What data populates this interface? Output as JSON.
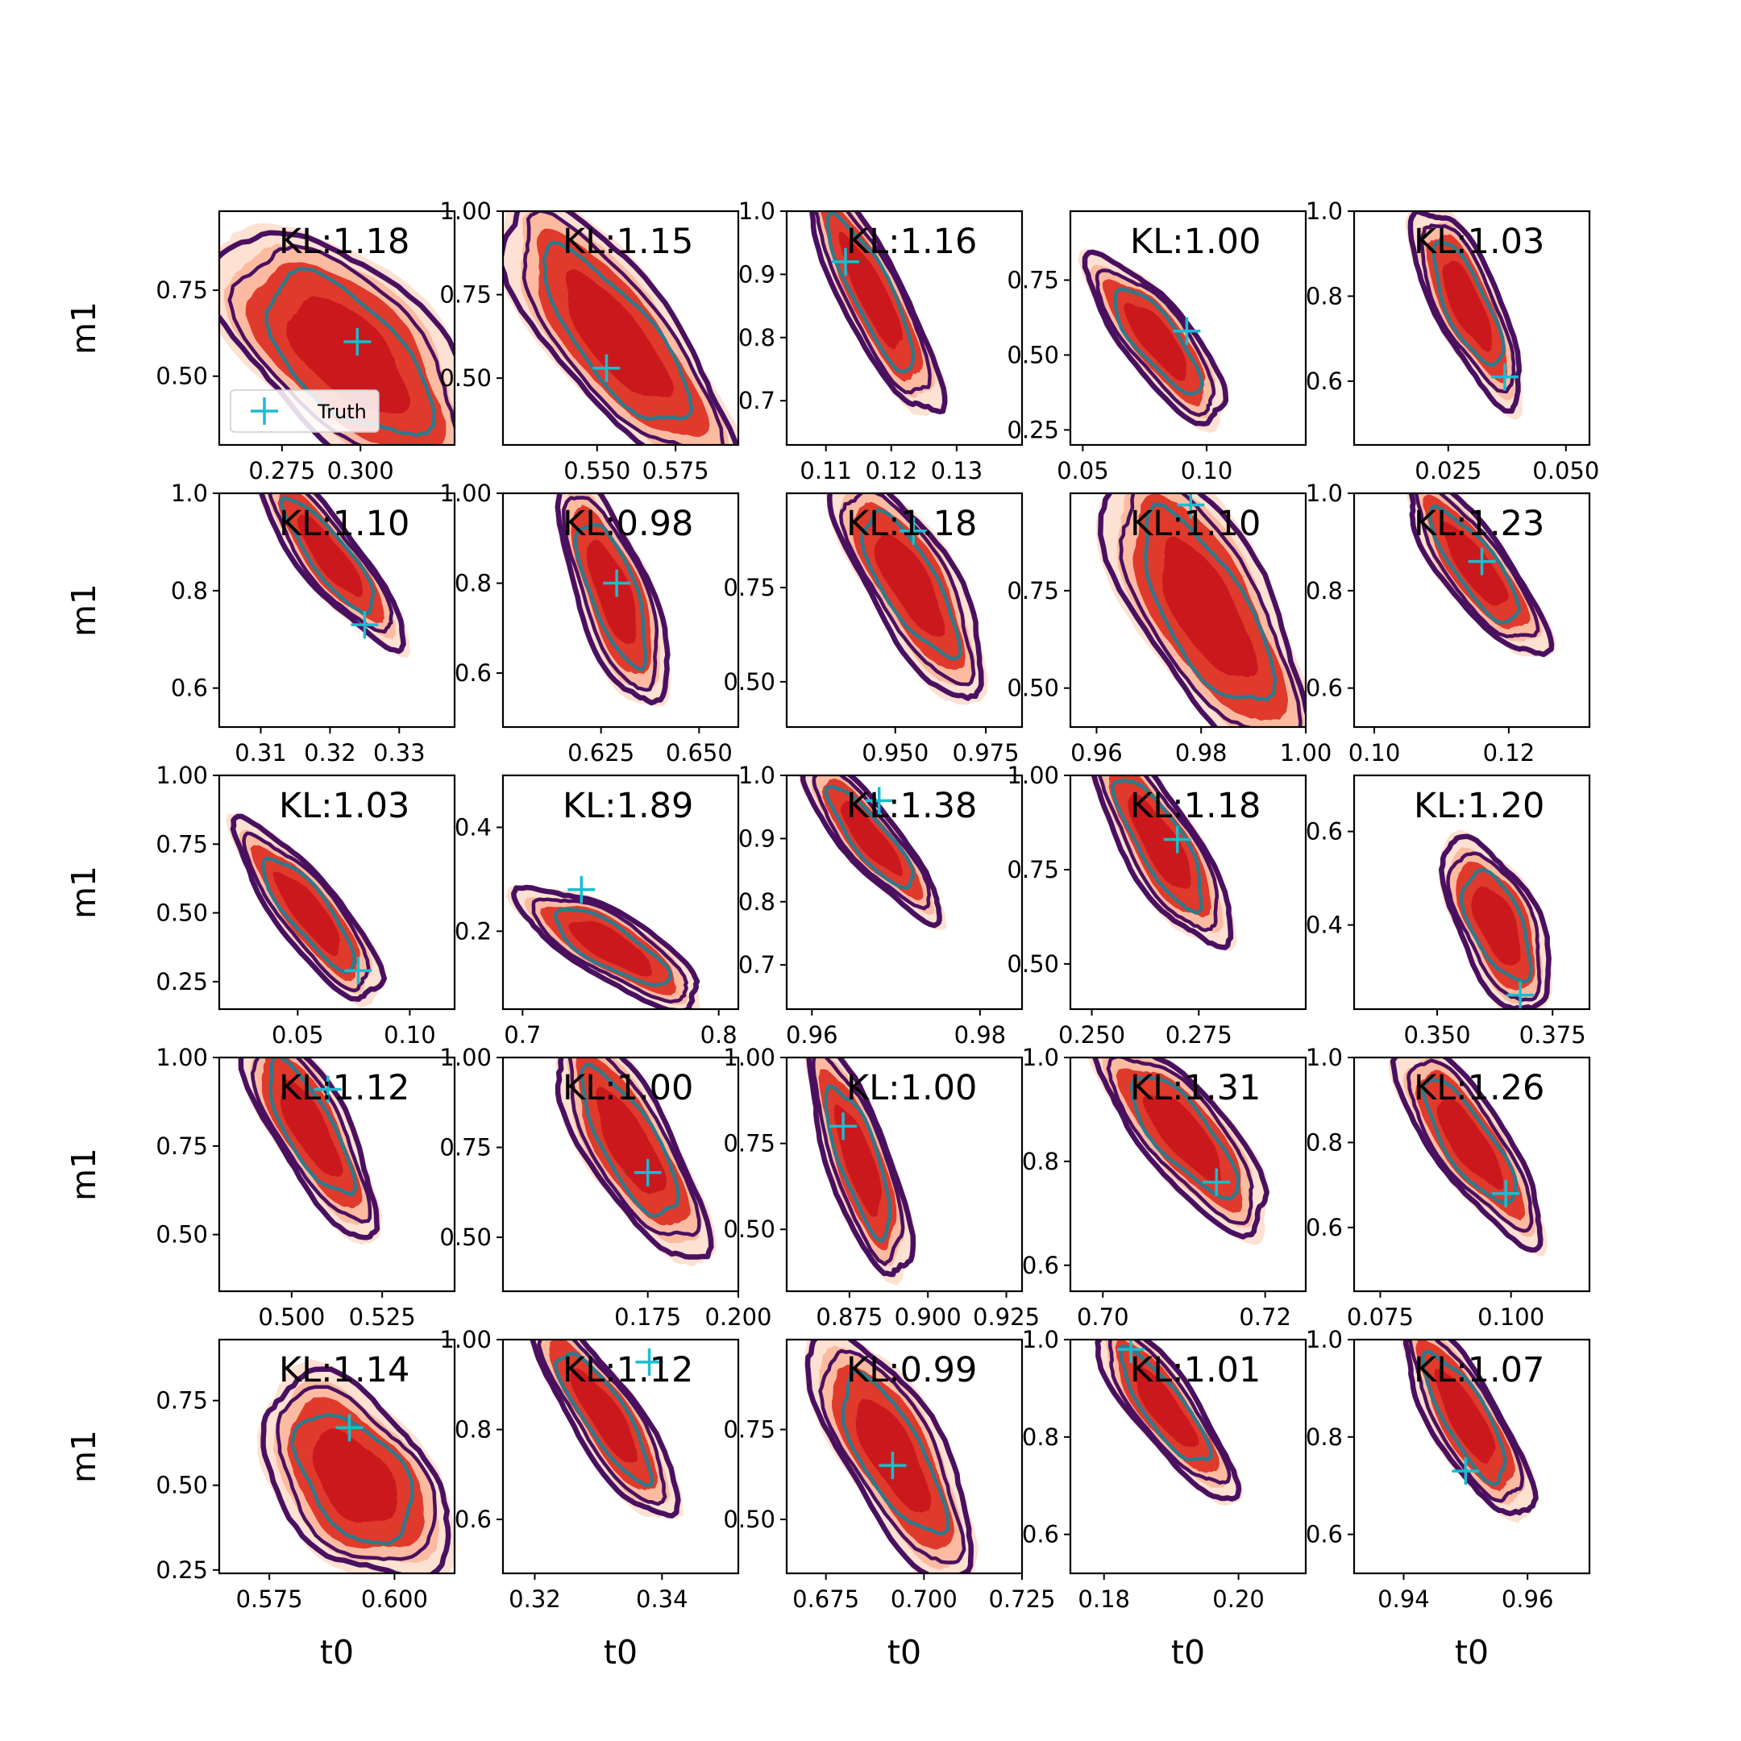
{
  "chart_data": {
    "type": "contour-grid",
    "rows": 5,
    "cols": 5,
    "xlabel": "t0",
    "ylabel": "m1",
    "legend": {
      "label": "Truth",
      "placement": "lower-left of first panel"
    },
    "colors": {
      "fill_outer": "#fde1d3",
      "fill_mid": "#fcbba1",
      "fill_inner": "#e03a2c",
      "fill_core": "#cb181d",
      "contour_outer": "#4a1060",
      "contour_inner": "#2e7a8c",
      "truth": "#17becf"
    },
    "panels": [
      {
        "kl": "KL:1.18",
        "xticks": [
          0.275,
          0.3
        ],
        "xticklabels": [
          "0.275",
          "0.300"
        ],
        "xlim": [
          0.255,
          0.33
        ],
        "yticks": [
          0.75,
          0.5
        ],
        "yticklabels": [
          "0.75",
          "0.50"
        ],
        "ylim": [
          0.3,
          0.98
        ],
        "cx": 0.296,
        "cy": 0.56,
        "sx": 0.018,
        "sy": 0.16,
        "rho": -0.6,
        "truth": [
          0.299,
          0.6
        ],
        "legend": true
      },
      {
        "kl": "KL:1.15",
        "xticks": [
          0.55,
          0.575
        ],
        "xticklabels": [
          "0.550",
          "0.575"
        ],
        "xlim": [
          0.52,
          0.595
        ],
        "yticks": [
          1.0,
          0.75,
          0.5
        ],
        "yticklabels": [
          "1.00",
          "0.75",
          "0.50"
        ],
        "ylim": [
          0.3,
          1.0
        ],
        "cx": 0.556,
        "cy": 0.62,
        "sx": 0.016,
        "sy": 0.18,
        "rho": -0.78,
        "truth": [
          0.553,
          0.53
        ]
      },
      {
        "kl": "KL:1.16",
        "xticks": [
          0.11,
          0.12,
          0.13
        ],
        "xticklabels": [
          "0.11",
          "0.12",
          "0.13"
        ],
        "xlim": [
          0.104,
          0.14
        ],
        "yticks": [
          1.0,
          0.9,
          0.8,
          0.7
        ],
        "yticklabels": [
          "1.0",
          "0.9",
          "0.8",
          "0.7"
        ],
        "ylim": [
          0.63,
          1.0
        ],
        "cx": 0.117,
        "cy": 0.87,
        "sx": 0.0045,
        "sy": 0.085,
        "rho": -0.86,
        "truth": [
          0.113,
          0.92
        ]
      },
      {
        "kl": "KL:1.00",
        "xticks": [
          0.05,
          0.1
        ],
        "xticklabels": [
          "0.05",
          "0.10"
        ],
        "xlim": [
          0.045,
          0.14
        ],
        "yticks": [
          0.75,
          0.5,
          0.25
        ],
        "yticklabels": [
          "0.75",
          "0.50",
          "0.25"
        ],
        "ylim": [
          0.2,
          0.98
        ],
        "cx": 0.08,
        "cy": 0.55,
        "sx": 0.012,
        "sy": 0.12,
        "rho": -0.8,
        "truth": [
          0.092,
          0.58
        ]
      },
      {
        "kl": "KL:1.03",
        "xticks": [
          0.025,
          0.05
        ],
        "xticklabels": [
          "0.025",
          "0.050"
        ],
        "xlim": [
          0.005,
          0.055
        ],
        "yticks": [
          1.0,
          0.8,
          0.6
        ],
        "yticklabels": [
          "1.0",
          "0.8",
          "0.6"
        ],
        "ylim": [
          0.45,
          1.0
        ],
        "cx": 0.029,
        "cy": 0.78,
        "sx": 0.005,
        "sy": 0.1,
        "rho": -0.75,
        "truth": [
          0.037,
          0.61
        ]
      },
      {
        "kl": "KL:1.10",
        "xticks": [
          0.31,
          0.32,
          0.33
        ],
        "xticklabels": [
          "0.31",
          "0.32",
          "0.33"
        ],
        "xlim": [
          0.304,
          0.338
        ],
        "yticks": [
          1.0,
          0.8,
          0.6
        ],
        "yticklabels": [
          "1.0",
          "0.8",
          "0.6"
        ],
        "ylim": [
          0.52,
          1.0
        ],
        "cx": 0.32,
        "cy": 0.87,
        "sx": 0.0045,
        "sy": 0.08,
        "rho": -0.86,
        "truth": [
          0.325,
          0.73
        ]
      },
      {
        "kl": "KL:0.98",
        "xticks": [
          0.625,
          0.65
        ],
        "xticklabels": [
          "0.625",
          "0.650"
        ],
        "xlim": [
          0.6,
          0.66
        ],
        "yticks": [
          1.0,
          0.8,
          0.6
        ],
        "yticklabels": [
          "1.00",
          "0.8",
          "0.6"
        ],
        "ylim": [
          0.48,
          1.0
        ],
        "cx": 0.628,
        "cy": 0.78,
        "sx": 0.006,
        "sy": 0.11,
        "rho": -0.7,
        "truth": [
          0.629,
          0.8
        ]
      },
      {
        "kl": "KL:1.18",
        "xticks": [
          0.95,
          0.975
        ],
        "xticklabels": [
          "0.950",
          "0.975"
        ],
        "xlim": [
          0.92,
          0.985
        ],
        "yticks": [
          0.75,
          0.5
        ],
        "yticklabels": [
          "0.75",
          "0.50"
        ],
        "ylim": [
          0.38,
          1.0
        ],
        "cx": 0.954,
        "cy": 0.76,
        "sx": 0.009,
        "sy": 0.13,
        "rho": -0.76,
        "truth": [
          0.955,
          0.9
        ]
      },
      {
        "kl": "KL:1.10",
        "xticks": [
          0.96,
          0.98,
          1.0
        ],
        "xticklabels": [
          "0.96",
          "0.98",
          "1.00"
        ],
        "xlim": [
          0.955,
          1.0
        ],
        "yticks": [
          0.75,
          0.5
        ],
        "yticklabels": [
          "0.75",
          "0.50"
        ],
        "ylim": [
          0.4,
          1.0
        ],
        "cx": 0.981,
        "cy": 0.7,
        "sx": 0.0085,
        "sy": 0.17,
        "rho": -0.7,
        "truth": [
          0.978,
          0.97
        ]
      },
      {
        "kl": "KL:1.23",
        "xticks": [
          0.1,
          0.12
        ],
        "xticklabels": [
          "0.10",
          "0.12"
        ],
        "xlim": [
          0.097,
          0.132
        ],
        "yticks": [
          1.0,
          0.8,
          0.6
        ],
        "yticklabels": [
          "1.0",
          "0.8",
          "0.6"
        ],
        "ylim": [
          0.52,
          1.0
        ],
        "cx": 0.115,
        "cy": 0.85,
        "sx": 0.0045,
        "sy": 0.08,
        "rho": -0.82,
        "truth": [
          0.116,
          0.86
        ]
      },
      {
        "kl": "KL:1.03",
        "xticks": [
          0.05,
          0.1
        ],
        "xticklabels": [
          "0.05",
          "0.10"
        ],
        "xlim": [
          0.015,
          0.12
        ],
        "yticks": [
          1.0,
          0.75,
          0.5,
          0.25
        ],
        "yticklabels": [
          "1.00",
          "0.75",
          "0.50",
          "0.25"
        ],
        "ylim": [
          0.15,
          1.0
        ],
        "cx": 0.055,
        "cy": 0.5,
        "sx": 0.014,
        "sy": 0.14,
        "rho": -0.84,
        "truth": [
          0.077,
          0.29
        ]
      },
      {
        "kl": "KL:1.89",
        "xticks": [
          0.7,
          0.8
        ],
        "xticklabels": [
          "0.7",
          "0.8"
        ],
        "xlim": [
          0.69,
          0.81
        ],
        "yticks": [
          0.4,
          0.2
        ],
        "yticklabels": [
          "0.4",
          "0.2"
        ],
        "ylim": [
          0.05,
          0.5
        ],
        "cx": 0.745,
        "cy": 0.17,
        "sx": 0.02,
        "sy": 0.05,
        "rho": -0.78,
        "truth": [
          0.73,
          0.28
        ]
      },
      {
        "kl": "KL:1.38",
        "xticks": [
          0.96,
          0.98
        ],
        "xticklabels": [
          "0.96",
          "0.98"
        ],
        "xlim": [
          0.957,
          0.985
        ],
        "yticks": [
          1.0,
          0.9,
          0.8,
          0.7
        ],
        "yticklabels": [
          "1.0",
          "0.9",
          "0.8",
          "0.7"
        ],
        "ylim": [
          0.63,
          1.0
        ],
        "cx": 0.967,
        "cy": 0.9,
        "sx": 0.0035,
        "sy": 0.055,
        "rho": -0.86,
        "truth": [
          0.968,
          0.96
        ]
      },
      {
        "kl": "KL:1.18",
        "xticks": [
          0.25,
          0.275
        ],
        "xticklabels": [
          "0.250",
          "0.275"
        ],
        "xlim": [
          0.245,
          0.3
        ],
        "yticks": [
          1.0,
          0.75,
          0.5
        ],
        "yticklabels": [
          "1.00",
          "0.75",
          "0.50"
        ],
        "ylim": [
          0.38,
          1.0
        ],
        "cx": 0.266,
        "cy": 0.82,
        "sx": 0.007,
        "sy": 0.12,
        "rho": -0.8,
        "truth": [
          0.27,
          0.83
        ]
      },
      {
        "kl": "KL:1.20",
        "xticks": [
          0.35,
          0.375
        ],
        "xticklabels": [
          "0.350",
          "0.375"
        ],
        "xlim": [
          0.332,
          0.383
        ],
        "yticks": [
          0.6,
          0.4
        ],
        "yticklabels": [
          "0.6",
          "0.4"
        ],
        "ylim": [
          0.22,
          0.72
        ],
        "cx": 0.363,
        "cy": 0.4,
        "sx": 0.005,
        "sy": 0.08,
        "rho": -0.58,
        "truth": [
          0.368,
          0.25
        ]
      },
      {
        "kl": "KL:1.12",
        "xticks": [
          0.5,
          0.525
        ],
        "xticklabels": [
          "0.500",
          "0.525"
        ],
        "xlim": [
          0.48,
          0.545
        ],
        "yticks": [
          1.0,
          0.75,
          0.5
        ],
        "yticklabels": [
          "1.00",
          "0.75",
          "0.50"
        ],
        "ylim": [
          0.34,
          1.0
        ],
        "cx": 0.505,
        "cy": 0.8,
        "sx": 0.008,
        "sy": 0.13,
        "rho": -0.78,
        "truth": [
          0.51,
          0.91
        ]
      },
      {
        "kl": "KL:1.00",
        "xticks": [
          0.175,
          0.2
        ],
        "xticklabels": [
          "0.175",
          "0.200"
        ],
        "xlim": [
          0.135,
          0.2
        ],
        "yticks": [
          1.0,
          0.75,
          0.5
        ],
        "yticklabels": [
          "1.00",
          "0.75",
          "0.50"
        ],
        "ylim": [
          0.35,
          1.0
        ],
        "cx": 0.17,
        "cy": 0.76,
        "sx": 0.009,
        "sy": 0.14,
        "rho": -0.76,
        "truth": [
          0.175,
          0.68
        ]
      },
      {
        "kl": "KL:1.00",
        "xticks": [
          0.875,
          0.9,
          0.925
        ],
        "xticklabels": [
          "0.875",
          "0.900",
          "0.925"
        ],
        "xlim": [
          0.855,
          0.93
        ],
        "yticks": [
          1.0,
          0.75,
          0.5
        ],
        "yticklabels": [
          "1.00",
          "0.75",
          "0.50"
        ],
        "ylim": [
          0.32,
          1.0
        ],
        "cx": 0.878,
        "cy": 0.7,
        "sx": 0.007,
        "sy": 0.15,
        "rho": -0.76,
        "truth": [
          0.873,
          0.8
        ]
      },
      {
        "kl": "KL:1.31",
        "xticks": [
          0.7,
          0.72
        ],
        "xticklabels": [
          "0.70",
          "0.72"
        ],
        "xlim": [
          0.696,
          0.725
        ],
        "yticks": [
          1.0,
          0.8,
          0.6
        ],
        "yticklabels": [
          "1.0",
          "0.8",
          "0.6"
        ],
        "ylim": [
          0.55,
          1.0
        ],
        "cx": 0.71,
        "cy": 0.85,
        "sx": 0.0045,
        "sy": 0.08,
        "rho": -0.78,
        "truth": [
          0.714,
          0.76
        ]
      },
      {
        "kl": "KL:1.26",
        "xticks": [
          0.075,
          0.1
        ],
        "xticklabels": [
          "0.075",
          "0.100"
        ],
        "xlim": [
          0.07,
          0.115
        ],
        "yticks": [
          1.0,
          0.8,
          0.6
        ],
        "yticklabels": [
          "1.0",
          "0.8",
          "0.6"
        ],
        "ylim": [
          0.45,
          1.0
        ],
        "cx": 0.092,
        "cy": 0.8,
        "sx": 0.006,
        "sy": 0.1,
        "rho": -0.8,
        "truth": [
          0.099,
          0.68
        ]
      },
      {
        "kl": "KL:1.14",
        "xticks": [
          0.575,
          0.6
        ],
        "xticklabels": [
          "0.575",
          "0.600"
        ],
        "xlim": [
          0.565,
          0.612
        ],
        "yticks": [
          0.75,
          0.5,
          0.25
        ],
        "yticklabels": [
          "0.75",
          "0.50",
          "0.25"
        ],
        "ylim": [
          0.24,
          0.93
        ],
        "cx": 0.592,
        "cy": 0.52,
        "sx": 0.008,
        "sy": 0.13,
        "rho": -0.45,
        "truth": [
          0.591,
          0.67
        ]
      },
      {
        "kl": "KL:1.12",
        "xticks": [
          0.32,
          0.34
        ],
        "xticklabels": [
          "0.32",
          "0.34"
        ],
        "xlim": [
          0.315,
          0.352
        ],
        "yticks": [
          1.0,
          0.8,
          0.6
        ],
        "yticklabels": [
          "1.00",
          "0.8",
          "0.6"
        ],
        "ylim": [
          0.48,
          1.0
        ],
        "cx": 0.331,
        "cy": 0.83,
        "sx": 0.005,
        "sy": 0.1,
        "rho": -0.85,
        "truth": [
          0.338,
          0.95
        ]
      },
      {
        "kl": "KL:0.99",
        "xticks": [
          0.675,
          0.7,
          0.725
        ],
        "xticklabels": [
          "0.675",
          "0.700",
          "0.725"
        ],
        "xlim": [
          0.665,
          0.725
        ],
        "yticks": [
          0.75,
          0.5
        ],
        "yticklabels": [
          "0.75",
          "0.50"
        ],
        "ylim": [
          0.35,
          1.0
        ],
        "cx": 0.692,
        "cy": 0.68,
        "sx": 0.009,
        "sy": 0.15,
        "rho": -0.74,
        "truth": [
          0.692,
          0.65
        ]
      },
      {
        "kl": "KL:1.01",
        "xticks": [
          0.18,
          0.2
        ],
        "xticklabels": [
          "0.18",
          "0.20"
        ],
        "xlim": [
          0.175,
          0.21
        ],
        "yticks": [
          1.0,
          0.8,
          0.6
        ],
        "yticklabels": [
          "1.0",
          "0.8",
          "0.6"
        ],
        "ylim": [
          0.52,
          1.0
        ],
        "cx": 0.189,
        "cy": 0.86,
        "sx": 0.0045,
        "sy": 0.08,
        "rho": -0.84,
        "truth": [
          0.184,
          0.98
        ]
      },
      {
        "kl": "KL:1.07",
        "xticks": [
          0.94,
          0.96
        ],
        "xticklabels": [
          "0.94",
          "0.96"
        ],
        "xlim": [
          0.932,
          0.97
        ],
        "yticks": [
          1.0,
          0.8,
          0.6
        ],
        "yticklabels": [
          "1.0",
          "0.8",
          "0.6"
        ],
        "ylim": [
          0.52,
          1.0
        ],
        "cx": 0.95,
        "cy": 0.84,
        "sx": 0.0045,
        "sy": 0.09,
        "rho": -0.8,
        "truth": [
          0.95,
          0.73
        ]
      }
    ]
  }
}
